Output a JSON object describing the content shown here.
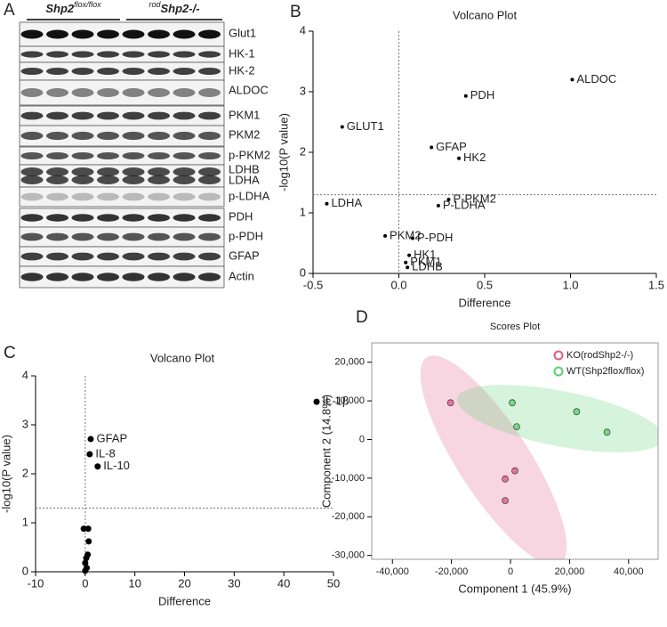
{
  "blot": {
    "panel": "A",
    "groups": [
      {
        "base": "Shp2",
        "sup": "flox/flox"
      },
      {
        "sup": "rod",
        "base": "Shp2-/-"
      }
    ],
    "rows": [
      "Glut1",
      "HK-1",
      "HK-2",
      "ALDOC",
      "PKM1",
      "PKM2",
      "p-PKM2",
      "LDHB",
      "LDHA",
      "p-LDHA",
      "PDH",
      "p-PDH",
      "GFAP",
      "Actin"
    ]
  },
  "chart_data": [
    {
      "type": "scatter",
      "panel": "B",
      "title": "Volcano Plot",
      "x_label": "Difference",
      "y_label": "-log10(P value)",
      "xlim": [
        -0.5,
        1.5
      ],
      "ylim": [
        0,
        4
      ],
      "xticks": [
        -0.5,
        {
          "value": 0,
          "label": "0.0"
        },
        0.5,
        {
          "value": 1,
          "label": "1.0"
        },
        1.5
      ],
      "yticks": [
        0,
        1,
        2,
        3,
        4
      ],
      "hline": 1.3,
      "vline": 0,
      "color": "#000000",
      "labels": [
        "ALDOC",
        "PDH",
        "GLUT1",
        "GFAP",
        "HK2",
        "P-PKM2",
        "P-LDHA",
        "LDHA",
        "PKM2",
        "P-PDH",
        "HK1",
        "PKM1",
        "LDHB"
      ],
      "x": [
        1.01,
        0.39,
        -0.33,
        0.19,
        0.35,
        0.29,
        0.23,
        -0.42,
        -0.08,
        0.08,
        0.06,
        0.04,
        0.05
      ],
      "values": [
        3.2,
        2.93,
        2.42,
        2.08,
        1.9,
        1.22,
        1.12,
        1.15,
        0.62,
        0.58,
        0.3,
        0.18,
        0.1
      ]
    },
    {
      "type": "scatter",
      "panel": "C",
      "title": "Volcano Plot",
      "x_label": "Difference",
      "y_label": "-log10(P value)",
      "xlim": [
        -10,
        50
      ],
      "ylim": [
        0,
        4
      ],
      "xticks": [
        -10,
        0,
        10,
        20,
        30,
        40,
        50
      ],
      "yticks": [
        0,
        1,
        2,
        3,
        4
      ],
      "hline": 1.3,
      "vline": 0,
      "color": "#000000",
      "labels": [
        "IL-1β",
        "GFAP",
        "IL-8",
        "IL-10",
        null,
        null,
        null,
        null,
        null,
        null,
        null,
        null
      ],
      "x": [
        46.6,
        1.1,
        0.9,
        2.5,
        -0.3,
        0.6,
        0.7,
        0.5,
        0.2,
        0,
        0.3,
        0
      ],
      "values": [
        3.47,
        2.71,
        2.4,
        2.15,
        0.88,
        0.88,
        0.62,
        0.35,
        0.28,
        0.18,
        0.08,
        0.02
      ]
    },
    {
      "type": "scatter",
      "panel": "D",
      "title": "Scores Plot",
      "x_label": "Component 1 (45.9%)",
      "y_label": "Component 2 (14.8%)",
      "xlim": [
        -47000,
        50000
      ],
      "ylim": [
        -31000,
        25000
      ],
      "xticks": [
        {
          "value": -40000,
          "label": "-40,000"
        },
        {
          "value": -20000,
          "label": "-20,000"
        },
        0,
        {
          "value": 20000,
          "label": "20,000"
        },
        {
          "value": 40000,
          "label": "40,000"
        }
      ],
      "yticks": [
        {
          "value": -30000,
          "label": "-30,000"
        },
        {
          "value": -20000,
          "label": "-20,000"
        },
        {
          "value": -10000,
          "label": "-10,000"
        },
        0,
        {
          "value": 10000,
          "label": "10,000"
        },
        {
          "value": 20000,
          "label": "20,000"
        }
      ],
      "legend": "upper right",
      "series": [
        {
          "name": "KO(rodShp2-/-)",
          "color": "#e05a8a",
          "x": [
            -20300,
            -1800,
            1500,
            -1800
          ],
          "values": [
            9500,
            -10200,
            -8100,
            -15800
          ]
        },
        {
          "name": "WT(Shp2flox/flox)",
          "color": "#5ccf6e",
          "x": [
            600,
            2100,
            22400,
            32700
          ],
          "values": [
            9500,
            3300,
            7200,
            1900
          ]
        }
      ]
    }
  ]
}
